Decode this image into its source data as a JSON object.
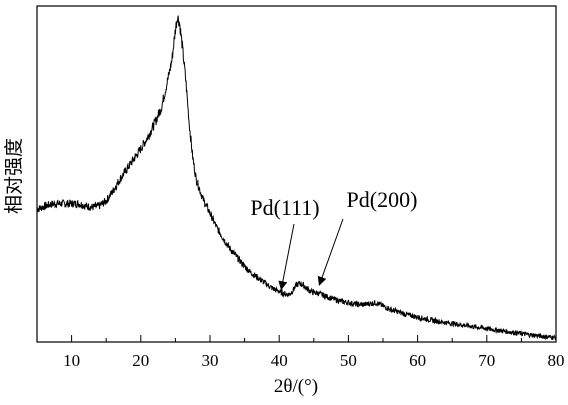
{
  "chart_data": {
    "type": "line",
    "title": "",
    "xlabel": "2θ/(°)",
    "ylabel": "相对强度",
    "xlim": [
      5,
      80
    ],
    "ylim": [
      0,
      100
    ],
    "x_ticks": [
      10,
      20,
      30,
      40,
      50,
      60,
      70,
      80
    ],
    "y_ticks_labeled": false,
    "grid": false,
    "legend": "none",
    "series": [
      {
        "x": [
          5,
          6,
          7,
          8,
          9,
          10,
          11,
          12,
          13,
          14,
          15,
          16,
          17,
          18,
          19,
          20,
          21,
          22,
          23,
          24,
          24.5,
          25,
          25.3,
          25.6,
          26,
          26.5,
          27,
          27.5,
          28,
          29,
          30,
          31,
          32,
          33,
          34,
          35,
          36,
          37,
          38,
          39,
          40,
          40.5,
          41,
          41.5,
          42,
          42.5,
          43,
          43.5,
          44,
          44.5,
          45,
          45.5,
          46,
          47,
          48,
          49,
          50,
          51,
          52,
          53,
          54,
          55,
          56,
          57,
          58,
          59,
          60,
          62,
          64,
          66,
          68,
          70,
          72,
          74,
          76,
          78,
          80
        ],
        "y": [
          39.5,
          40.3,
          41,
          41.2,
          41.2,
          41.2,
          41.2,
          40.5,
          40.1,
          40.5,
          42,
          45,
          48.5,
          51.5,
          54.5,
          57.5,
          61,
          65,
          70,
          79,
          84,
          93,
          97,
          95,
          88,
          78,
          65,
          55,
          48.5,
          42.5,
          38.3,
          34,
          30.5,
          27.5,
          25,
          22.5,
          20.5,
          19,
          17.5,
          16,
          15,
          14.5,
          14.2,
          14.2,
          15.4,
          17,
          17.5,
          16.9,
          15.9,
          15.2,
          14.7,
          14.6,
          14.2,
          13.4,
          12.7,
          12.1,
          11.7,
          11.3,
          11.1,
          11.4,
          11.7,
          10.7,
          9.7,
          9.1,
          8.4,
          7.9,
          7.4,
          6.5,
          5.8,
          5.2,
          4.6,
          4,
          3.4,
          2.8,
          2.2,
          1.7,
          1.3
        ]
      }
    ],
    "annotations": [
      {
        "text": "Pd(111)",
        "x": 40.3,
        "y": 14.8
      },
      {
        "text": "Pd(200)",
        "x": 45.8,
        "y": 16.1
      }
    ]
  }
}
